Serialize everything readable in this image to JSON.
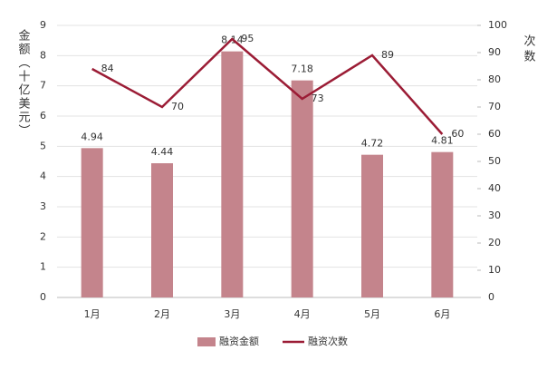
{
  "chart_data": {
    "type": "bar",
    "categories": [
      "1月",
      "2月",
      "3月",
      "4月",
      "5月",
      "6月"
    ],
    "y_label": "金额（十亿美元）",
    "y2_label": "次数",
    "series": [
      {
        "name": "融资金额",
        "type": "bar",
        "color": "#c4848c",
        "values": [
          4.94,
          4.44,
          8.14,
          7.18,
          4.72,
          4.81
        ]
      },
      {
        "name": "融资次数",
        "type": "line",
        "axis": "y2",
        "color": "#9b1c35",
        "values": [
          84,
          70,
          95,
          73,
          89,
          60
        ]
      }
    ],
    "ylim": [
      0,
      9
    ],
    "yticks": [
      0,
      1,
      2,
      3,
      4,
      5,
      6,
      7,
      8,
      9
    ],
    "y2lim": [
      0,
      100
    ],
    "y2ticks": [
      0,
      10,
      20,
      30,
      40,
      50,
      60,
      70,
      80,
      90,
      100
    ],
    "grid": true,
    "legend": "bottom"
  }
}
